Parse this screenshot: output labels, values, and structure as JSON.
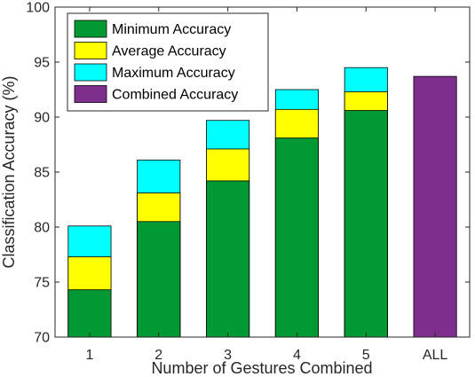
{
  "chart_data": {
    "type": "bar",
    "stacked_overlay": true,
    "categories": [
      "1",
      "2",
      "3",
      "4",
      "5",
      "ALL"
    ],
    "series": [
      {
        "name": "Maximum Accuracy",
        "color": "#00ffff",
        "values": [
          80.1,
          86.1,
          89.7,
          92.5,
          94.5,
          null
        ]
      },
      {
        "name": "Average Accuracy",
        "color": "#ffff00",
        "values": [
          77.3,
          83.1,
          87.1,
          90.7,
          92.3,
          null
        ]
      },
      {
        "name": "Minimum Accuracy",
        "color": "#009933",
        "values": [
          74.3,
          80.5,
          84.2,
          88.1,
          90.6,
          null
        ]
      },
      {
        "name": "Combined Accuracy",
        "color": "#7e2f8e",
        "values": [
          null,
          null,
          null,
          null,
          null,
          93.7
        ]
      }
    ],
    "legend_order": [
      "Minimum Accuracy",
      "Average Accuracy",
      "Maximum Accuracy",
      "Combined Accuracy"
    ],
    "legend_placement": "top-left",
    "title": "",
    "xlabel": "Number of Gestures Combined",
    "ylabel": "Classification Accuracy (%)",
    "ylim": [
      70,
      100
    ],
    "yticks": [
      "70",
      "75",
      "80",
      "85",
      "90",
      "95",
      "100"
    ],
    "grid": false
  }
}
